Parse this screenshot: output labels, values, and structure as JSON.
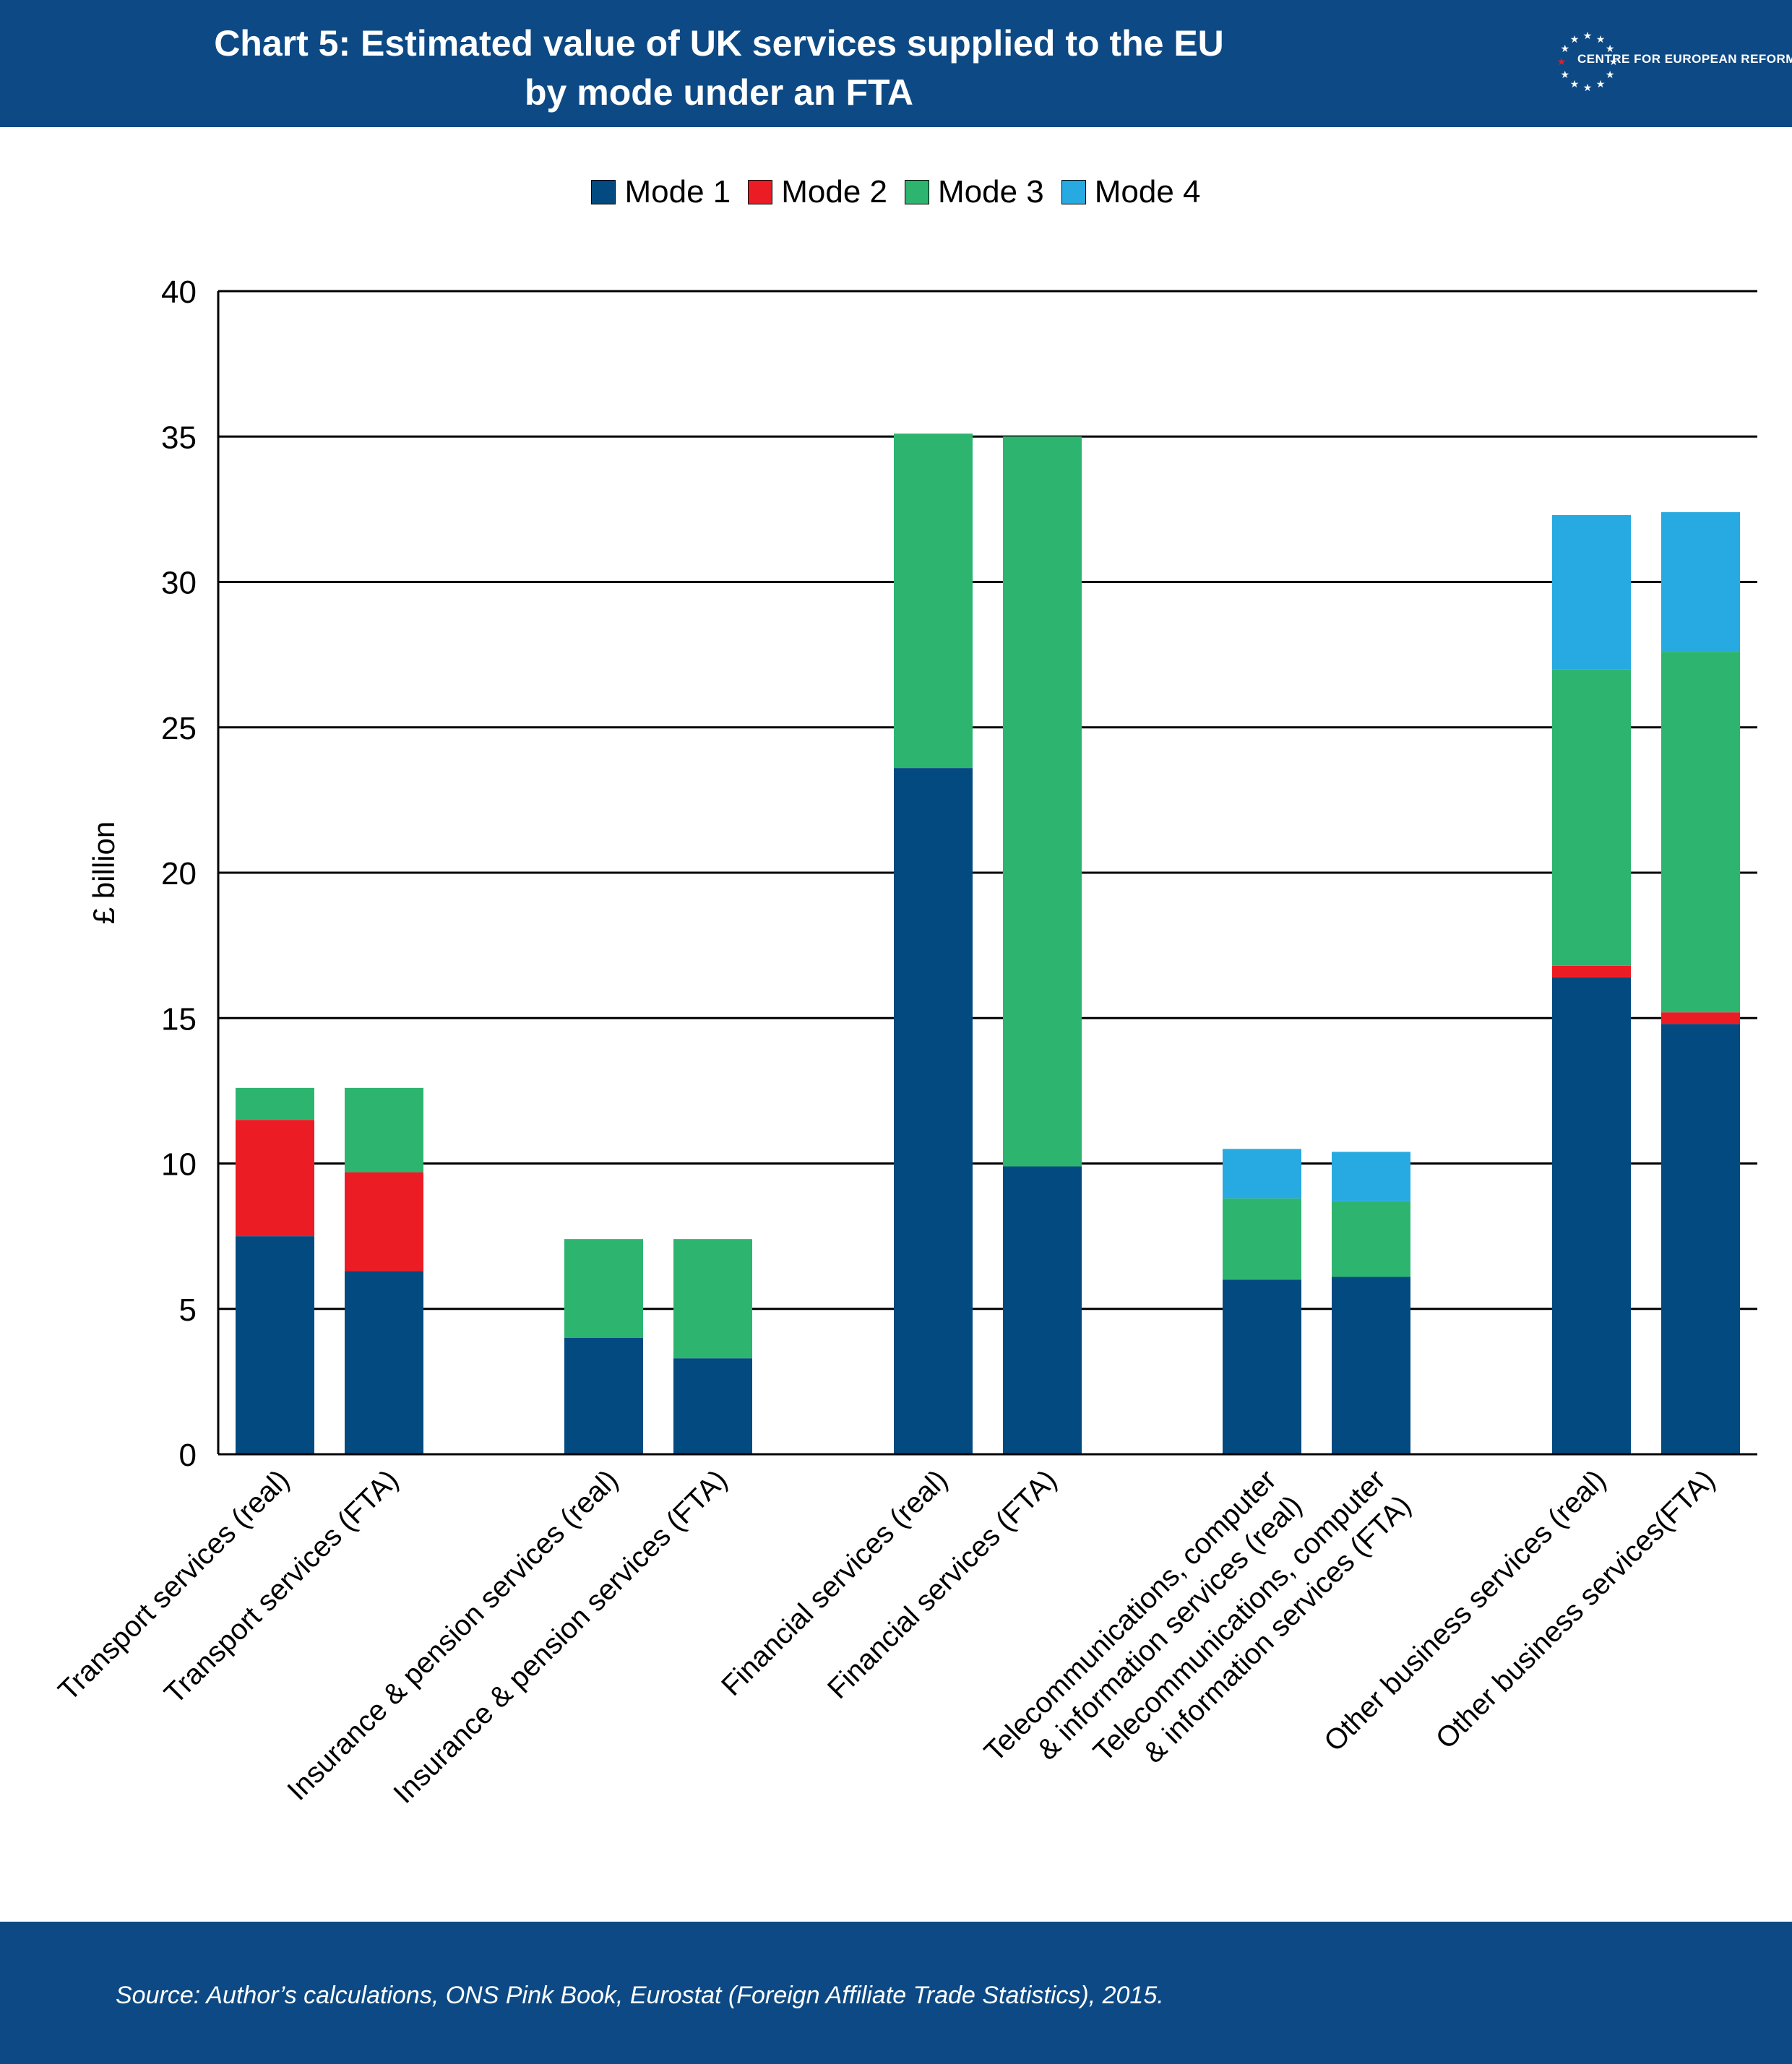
{
  "header": {
    "title_line1": "Chart 5: Estimated value of UK services supplied to the EU",
    "title_line2": "by mode under an FTA",
    "logo_text": "CENTRE FOR EUROPEAN REFORM"
  },
  "footer": {
    "source": "Source: Author’s calculations, ONS Pink Book, Eurostat (Foreign Affiliate Trade Statistics), 2015."
  },
  "colors": {
    "header_bg": "#0d4a85",
    "mode1": "#034a80",
    "mode2": "#ec1c24",
    "mode3": "#2db570",
    "mode4": "#27aae1"
  },
  "chart_data": {
    "type": "bar",
    "stacked": true,
    "title": "Chart 5: Estimated value of UK services supplied to the EU by mode under an FTA",
    "ylabel": "£ billion",
    "xlabel": "",
    "ylim": [
      0,
      40
    ],
    "yticks": [
      0,
      5,
      10,
      15,
      20,
      25,
      30,
      35,
      40
    ],
    "grid": true,
    "legend_position": "top-center",
    "groups": [
      {
        "categories": [
          {
            "lines": [
              "Transport services (real)"
            ]
          },
          {
            "lines": [
              "Transport services (FTA)"
            ]
          }
        ]
      },
      {
        "categories": [
          {
            "lines": [
              "Insurance & pension services (real)"
            ]
          },
          {
            "lines": [
              "Insurance & pension services (FTA)"
            ]
          }
        ]
      },
      {
        "categories": [
          {
            "lines": [
              "Financial services (real)"
            ]
          },
          {
            "lines": [
              "Financial services (FTA)"
            ]
          }
        ]
      },
      {
        "categories": [
          {
            "lines": [
              "Telecommunications, computer",
              "& information services (real)"
            ]
          },
          {
            "lines": [
              "Telecommunications, computer",
              "& information services (FTA)"
            ]
          }
        ]
      },
      {
        "categories": [
          {
            "lines": [
              "Other business services (real)"
            ]
          },
          {
            "lines": [
              "Other business services(FTA)"
            ]
          }
        ]
      }
    ],
    "series": [
      {
        "name": "Mode 1",
        "color": "#034a80",
        "values": [
          7.5,
          6.3,
          4.0,
          3.3,
          23.6,
          9.9,
          6.0,
          6.1,
          16.4,
          14.8
        ]
      },
      {
        "name": "Mode 2",
        "color": "#ec1c24",
        "values": [
          4.0,
          3.4,
          0.0,
          0.0,
          0.0,
          0.0,
          0.0,
          0.0,
          0.4,
          0.4
        ]
      },
      {
        "name": "Mode 3",
        "color": "#2db570",
        "values": [
          1.1,
          2.9,
          3.4,
          4.1,
          11.5,
          25.1,
          2.8,
          2.6,
          10.2,
          12.4
        ]
      },
      {
        "name": "Mode 4",
        "color": "#27aae1",
        "values": [
          0.0,
          0.0,
          0.0,
          0.0,
          0.0,
          0.0,
          1.7,
          1.7,
          5.3,
          4.8
        ]
      }
    ]
  }
}
